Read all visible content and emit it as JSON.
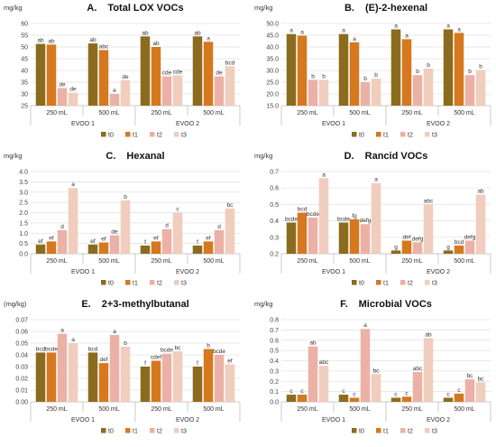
{
  "legend_labels": [
    "t0",
    "t1",
    "t2",
    "t3"
  ],
  "colors": [
    "#8b6c1e",
    "#d5781e",
    "#ecb1a6",
    "#f0cdbd"
  ],
  "chart_data": [
    {
      "type": "bar",
      "panel_letter": "A.",
      "title": "Total LOX VOCs",
      "unit": "mg/kg",
      "ylim": [
        25,
        60
      ],
      "yticks": [
        "25",
        "30",
        "35",
        "40",
        "45",
        "50",
        "55",
        "60"
      ],
      "groups": [
        {
          "label": "250 mL",
          "oil": "EVOO 1",
          "values": [
            51.3,
            51.0,
            32.5,
            30.5
          ],
          "letters": [
            "ab",
            "ab",
            "de",
            "de"
          ]
        },
        {
          "label": "500 mL",
          "oil": "EVOO 1",
          "values": [
            51.5,
            48.7,
            30.0,
            35.8
          ],
          "letters": [
            "ab",
            "abc",
            "e",
            "de"
          ]
        },
        {
          "label": "250 mL",
          "oil": "EVOO 2",
          "values": [
            54.5,
            50.0,
            37.5,
            37.9
          ],
          "letters": [
            "ab",
            "ab",
            "cde",
            "cde"
          ]
        },
        {
          "label": "500 mL",
          "oil": "EVOO 2",
          "values": [
            54.5,
            52.2,
            37.5,
            41.8
          ],
          "letters": [
            "ab",
            "a",
            "de",
            "bcd"
          ]
        }
      ],
      "oils": [
        "EVOO 1",
        "EVOO 2"
      ]
    },
    {
      "type": "bar",
      "panel_letter": "B.",
      "title": "(E)-2-hexenal",
      "unit": "mg/kg",
      "ylim": [
        15,
        50
      ],
      "yticks": [
        "15.0",
        "20.0",
        "25.0",
        "30.0",
        "35.0",
        "40.0",
        "45.0",
        "50.0"
      ],
      "groups": [
        {
          "label": "250 mL",
          "oil": "EVOO 1",
          "values": [
            45.5,
            44.8,
            26.0,
            26.0
          ],
          "letters": [
            "a",
            "a",
            "b",
            "b"
          ]
        },
        {
          "label": "500 mL",
          "oil": "EVOO 1",
          "values": [
            45.5,
            42.0,
            25.0,
            26.5
          ],
          "letters": [
            "a",
            "a",
            "b",
            "b"
          ]
        },
        {
          "label": "250 mL",
          "oil": "EVOO 2",
          "values": [
            47.5,
            43.3,
            28.0,
            30.8
          ],
          "letters": [
            "a",
            "a",
            "b",
            "b"
          ]
        },
        {
          "label": "500 mL",
          "oil": "EVOO 2",
          "values": [
            47.5,
            46.0,
            28.0,
            30.2
          ],
          "letters": [
            "a",
            "a",
            "b",
            "b"
          ]
        }
      ],
      "oils": [
        "EVOO 1",
        "EVOO 2"
      ]
    },
    {
      "type": "bar",
      "panel_letter": "C.",
      "title": "Hexanal",
      "unit": "mg/kg",
      "ylim": [
        0,
        4
      ],
      "yticks": [
        "0.0",
        "0.5",
        "1.0",
        "1.5",
        "2.0",
        "2.5",
        "3.0",
        "3.5",
        "4.0"
      ],
      "groups": [
        {
          "label": "250 mL",
          "oil": "EVOO 1",
          "values": [
            0.45,
            0.6,
            1.15,
            3.2
          ],
          "letters": [
            "ef",
            "ef",
            "d",
            "a"
          ]
        },
        {
          "label": "500 mL",
          "oil": "EVOO 1",
          "values": [
            0.45,
            0.55,
            0.9,
            2.6
          ],
          "letters": [
            "ef",
            "ef",
            "de",
            "b"
          ]
        },
        {
          "label": "250 mL",
          "oil": "EVOO 2",
          "values": [
            0.4,
            0.6,
            1.2,
            2.0
          ],
          "letters": [
            "f",
            "ef",
            "d",
            "c"
          ]
        },
        {
          "label": "500 mL",
          "oil": "EVOO 2",
          "values": [
            0.4,
            0.6,
            1.15,
            2.2
          ],
          "letters": [
            "f",
            "ef",
            "d",
            "bc"
          ]
        }
      ],
      "oils": [
        "EVOO 1",
        "EVOO 2"
      ]
    },
    {
      "type": "bar",
      "panel_letter": "D.",
      "title": "Rancid VOCs",
      "unit": "mg/kg",
      "ylim": [
        0.2,
        0.7
      ],
      "yticks": [
        "0.2",
        "0.3",
        "0.4",
        "0.5",
        "0.6",
        "0.7"
      ],
      "groups": [
        {
          "label": "250 mL",
          "oil": "EVOO 1",
          "values": [
            0.39,
            0.45,
            0.42,
            0.66
          ],
          "letters": [
            "bcde",
            "bcd",
            "bcde",
            "a"
          ]
        },
        {
          "label": "500 mL",
          "oil": "EVOO 1",
          "values": [
            0.39,
            0.41,
            0.38,
            0.63
          ],
          "letters": [
            "bcde",
            "fg",
            "defg",
            "a"
          ]
        },
        {
          "label": "250 mL",
          "oil": "EVOO 2",
          "values": [
            0.22,
            0.28,
            0.27,
            0.5
          ],
          "letters": [
            "g",
            "def",
            "defg",
            "abc"
          ]
        },
        {
          "label": "500 mL",
          "oil": "EVOO 2",
          "values": [
            0.22,
            0.25,
            0.28,
            0.56
          ],
          "letters": [
            "g",
            "bcd",
            "defg",
            "ab"
          ]
        }
      ],
      "oils": [
        "EVOO 1",
        "EVOO 2"
      ]
    },
    {
      "type": "bar",
      "panel_letter": "E.",
      "title": "2+3-methylbutanal",
      "unit": "(mg/kg)",
      "ylim": [
        0,
        0.07
      ],
      "yticks": [
        "0.00",
        "0.01",
        "0.02",
        "0.03",
        "0.04",
        "0.05",
        "0.06",
        "0.07"
      ],
      "groups": [
        {
          "label": "250 mL",
          "oil": "EVOO 1",
          "values": [
            0.042,
            0.042,
            0.058,
            0.05
          ],
          "letters": [
            "bcd",
            "bcde",
            "a",
            "a"
          ]
        },
        {
          "label": "500 mL",
          "oil": "EVOO 1",
          "values": [
            0.042,
            0.033,
            0.057,
            0.047
          ],
          "letters": [
            "bcd",
            "def",
            "a",
            "b"
          ]
        },
        {
          "label": "250 mL",
          "oil": "EVOO 2",
          "values": [
            0.03,
            0.035,
            0.041,
            0.043
          ],
          "letters": [
            "f",
            "cdef",
            "bcde",
            "bc"
          ]
        },
        {
          "label": "500 mL",
          "oil": "EVOO 2",
          "values": [
            0.03,
            0.045,
            0.04,
            0.032
          ],
          "letters": [
            "f",
            "b",
            "bcde",
            "ef"
          ]
        }
      ],
      "oils": [
        "EVOO 1",
        "EVOO 2"
      ]
    },
    {
      "type": "bar",
      "panel_letter": "F.",
      "title": "Microbial VOCs",
      "unit": "mg/kg",
      "ylim": [
        0,
        0.8
      ],
      "yticks": [
        "0.0",
        "0.1",
        "0.2",
        "0.3",
        "0.4",
        "0.5",
        "0.6",
        "0.7",
        "0.8"
      ],
      "groups": [
        {
          "label": "250 mL",
          "oil": "EVOO 1",
          "values": [
            0.07,
            0.07,
            0.54,
            0.35
          ],
          "letters": [
            "c",
            "c",
            "ab",
            "abc"
          ]
        },
        {
          "label": "500 mL",
          "oil": "EVOO 1",
          "values": [
            0.07,
            0.04,
            0.71,
            0.27
          ],
          "letters": [
            "c",
            "c",
            "a",
            "bc"
          ]
        },
        {
          "label": "250 mL",
          "oil": "EVOO 2",
          "values": [
            0.04,
            0.05,
            0.29,
            0.62
          ],
          "letters": [
            "c",
            "c",
            "abc",
            "ab"
          ]
        },
        {
          "label": "500 mL",
          "oil": "EVOO 2",
          "values": [
            0.04,
            0.08,
            0.22,
            0.19
          ],
          "letters": [
            "c",
            "c",
            "bc",
            "bc"
          ]
        }
      ],
      "oils": [
        "EVOO 1",
        "EVOO 2"
      ]
    }
  ]
}
